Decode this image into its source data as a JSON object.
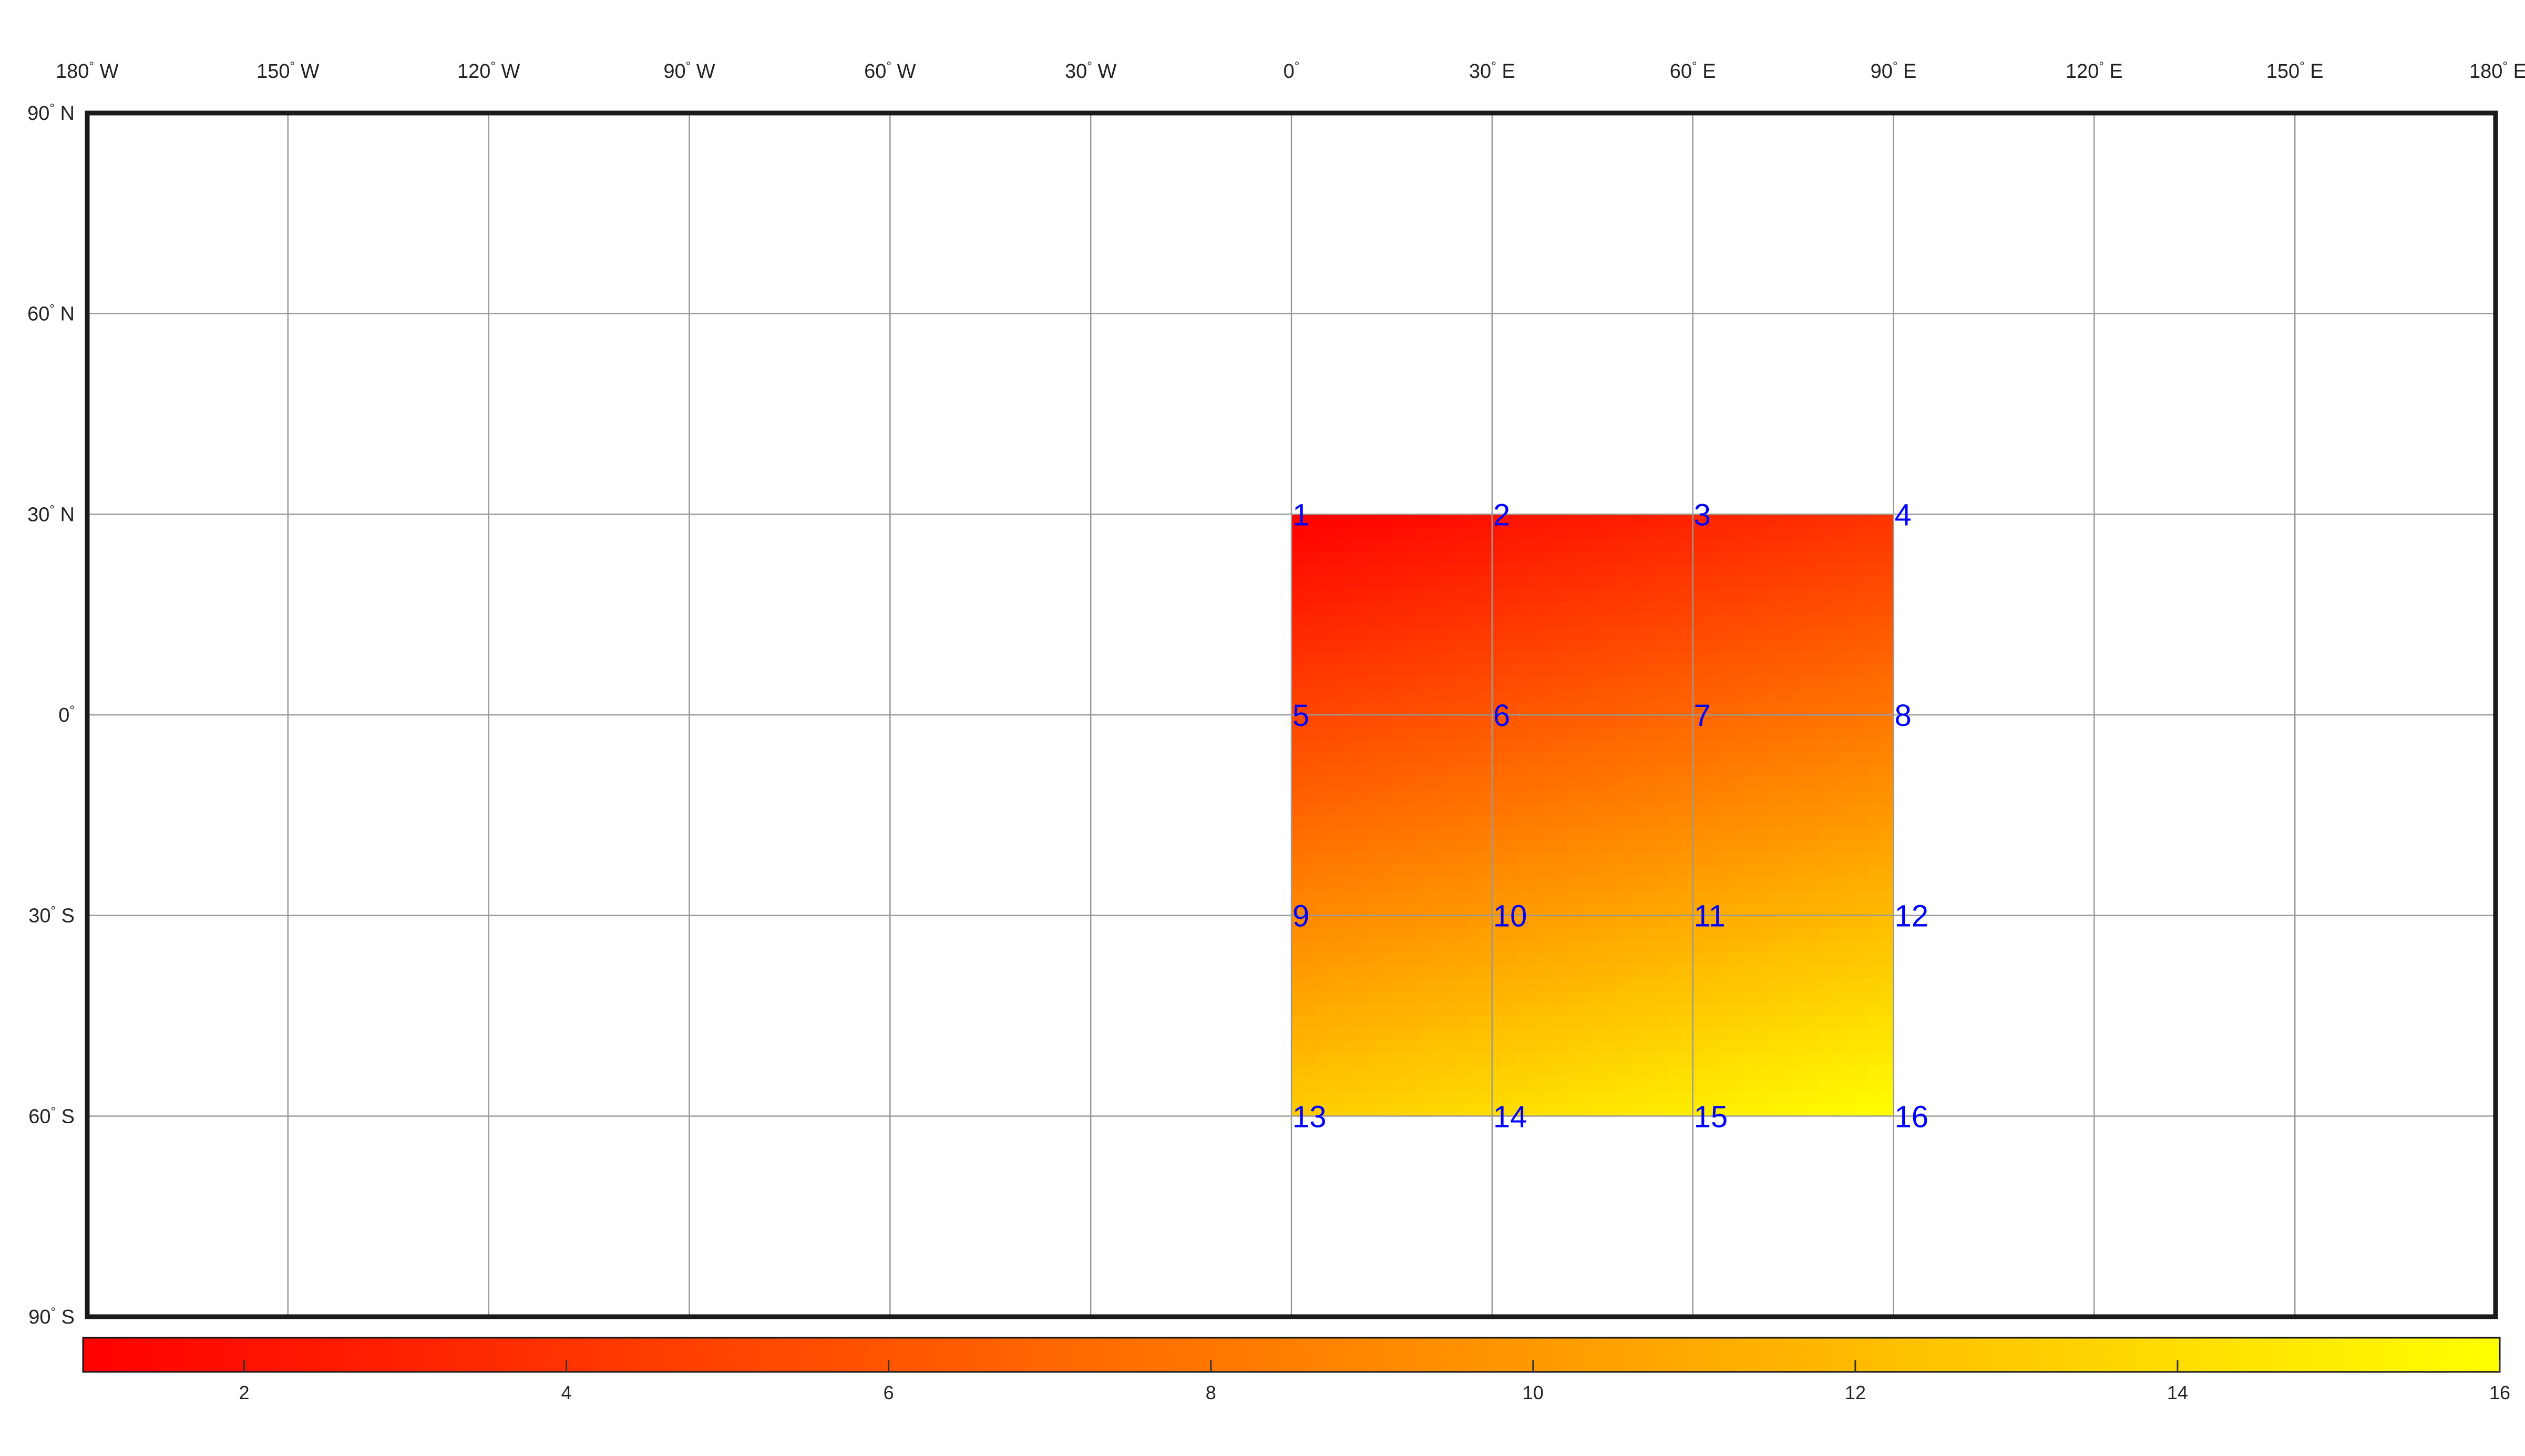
{
  "chart_data": {
    "type": "heatmap",
    "projection": "equirectangular",
    "xlim": [
      -180,
      180
    ],
    "ylim": [
      -90,
      90
    ],
    "grid": true,
    "lon_ticks": [
      {
        "value": -180,
        "num": "180",
        "hemi": " W"
      },
      {
        "value": -150,
        "num": "150",
        "hemi": " W"
      },
      {
        "value": -120,
        "num": "120",
        "hemi": " W"
      },
      {
        "value": -90,
        "num": "90",
        "hemi": " W"
      },
      {
        "value": -60,
        "num": "60",
        "hemi": " W"
      },
      {
        "value": -30,
        "num": "30",
        "hemi": " W"
      },
      {
        "value": 0,
        "num": "0",
        "hemi": ""
      },
      {
        "value": 30,
        "num": "30",
        "hemi": " E"
      },
      {
        "value": 60,
        "num": "60",
        "hemi": " E"
      },
      {
        "value": 90,
        "num": "90",
        "hemi": " E"
      },
      {
        "value": 120,
        "num": "120",
        "hemi": " E"
      },
      {
        "value": 150,
        "num": "150",
        "hemi": " E"
      },
      {
        "value": 180,
        "num": "180",
        "hemi": " E"
      }
    ],
    "lat_ticks": [
      {
        "value": 90,
        "num": "90",
        "hemi": " N"
      },
      {
        "value": 60,
        "num": "60",
        "hemi": " N"
      },
      {
        "value": 30,
        "num": "30",
        "hemi": " N"
      },
      {
        "value": 0,
        "num": "0",
        "hemi": ""
      },
      {
        "value": -30,
        "num": "30",
        "hemi": " S"
      },
      {
        "value": -60,
        "num": "60",
        "hemi": " S"
      },
      {
        "value": -90,
        "num": "90",
        "hemi": " S"
      }
    ],
    "degree_symbol": "°",
    "grid_lon": [
      0,
      30,
      60,
      90
    ],
    "grid_lat": [
      30,
      0,
      -30,
      -60
    ],
    "values": [
      [
        1,
        2,
        3,
        4
      ],
      [
        5,
        6,
        7,
        8
      ],
      [
        9,
        10,
        11,
        12
      ],
      [
        13,
        14,
        15,
        16
      ]
    ],
    "point_labels": [
      {
        "text": "1",
        "lon": 0,
        "lat": 30
      },
      {
        "text": "2",
        "lon": 30,
        "lat": 30
      },
      {
        "text": "3",
        "lon": 60,
        "lat": 30
      },
      {
        "text": "4",
        "lon": 90,
        "lat": 30
      },
      {
        "text": "5",
        "lon": 0,
        "lat": 0
      },
      {
        "text": "6",
        "lon": 30,
        "lat": 0
      },
      {
        "text": "7",
        "lon": 60,
        "lat": 0
      },
      {
        "text": "8",
        "lon": 90,
        "lat": 0
      },
      {
        "text": "9",
        "lon": 0,
        "lat": -30
      },
      {
        "text": "10",
        "lon": 30,
        "lat": -30
      },
      {
        "text": "11",
        "lon": 60,
        "lat": -30
      },
      {
        "text": "12",
        "lon": 90,
        "lat": -30
      },
      {
        "text": "13",
        "lon": 0,
        "lat": -60
      },
      {
        "text": "14",
        "lon": 30,
        "lat": -60
      },
      {
        "text": "15",
        "lon": 60,
        "lat": -60
      },
      {
        "text": "16",
        "lon": 90,
        "lat": -60
      }
    ],
    "colormap": {
      "name": "autumn",
      "low_color": "#ff0000",
      "high_color": "#ffff00"
    },
    "colorbar": {
      "range": [
        1,
        16
      ],
      "ticks": [
        2,
        4,
        6,
        8,
        10,
        12,
        14,
        16
      ],
      "tick_labels": [
        "2",
        "4",
        "6",
        "8",
        "10",
        "12",
        "14",
        "16"
      ],
      "orientation": "horizontal",
      "placement": "bottom"
    },
    "colors": {
      "label_color": "#0000ff",
      "grid_color": "#999999",
      "frame_color": "#1a1a1a"
    }
  }
}
